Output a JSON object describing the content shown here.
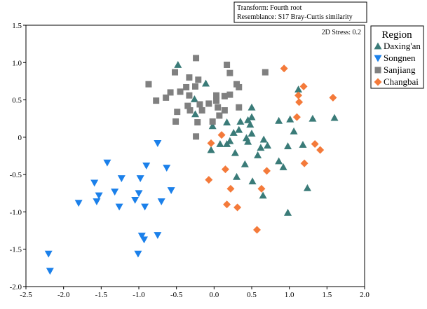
{
  "chart_data": {
    "type": "scatter",
    "title": "",
    "xlabel": "",
    "ylabel": "",
    "xlim": [
      -2.5,
      2.0
    ],
    "ylim": [
      -2.0,
      1.5
    ],
    "xticks": [
      "-2.5",
      "-2.0",
      "-1.5",
      "-1.0",
      "-0.5",
      "0.0",
      "0.5",
      "1.0",
      "1.5",
      "2.0"
    ],
    "yticks": [
      "1.5",
      "1.0",
      "0.5",
      "0",
      "-0.5",
      "-1.0",
      "-1.5",
      "-2.0"
    ],
    "grid": false,
    "legend_placement": "right-top",
    "legend_title": "Region",
    "annotation_box": [
      "Transform: Fourth root",
      "Resemblance: S17 Bray-Curtis similarity"
    ],
    "stress_label": "2D Stress: 0.2",
    "series": [
      {
        "name": "Daxing'an",
        "marker": "triangle-up",
        "color": "#3a7b78",
        "points": [
          [
            -0.11,
            0.72
          ],
          [
            1.12,
            0.64
          ],
          [
            0.5,
            0.4
          ],
          [
            0.5,
            0.27
          ],
          [
            0.17,
            0.2
          ],
          [
            0.35,
            0.21
          ],
          [
            0.45,
            0.23
          ],
          [
            0.48,
            0.17
          ],
          [
            0.86,
            0.22
          ],
          [
            1.01,
            0.24
          ],
          [
            1.31,
            0.25
          ],
          [
            1.6,
            0.26
          ],
          [
            0.33,
            0.1
          ],
          [
            0.26,
            0.06
          ],
          [
            -0.02,
            0.15
          ],
          [
            1.06,
            0.08
          ],
          [
            0.5,
            0.05
          ],
          [
            0.43,
            -0.01
          ],
          [
            0.45,
            -0.06
          ],
          [
            0.21,
            -0.05
          ],
          [
            0.08,
            -0.09
          ],
          [
            0.17,
            -0.09
          ],
          [
            -0.04,
            -0.17
          ],
          [
            0.66,
            -0.03
          ],
          [
            0.71,
            -0.11
          ],
          [
            0.62,
            -0.14
          ],
          [
            0.28,
            -0.21
          ],
          [
            0.58,
            -0.24
          ],
          [
            0.98,
            -0.12
          ],
          [
            1.18,
            -0.1
          ],
          [
            0.41,
            -0.36
          ],
          [
            0.86,
            -0.32
          ],
          [
            0.92,
            -0.4
          ],
          [
            0.3,
            -0.53
          ],
          [
            0.51,
            -0.59
          ],
          [
            0.65,
            -0.78
          ],
          [
            1.24,
            -0.68
          ],
          [
            0.98,
            -1.01
          ],
          [
            -0.48,
            0.97
          ],
          [
            -0.26,
            0.51
          ],
          [
            -0.25,
            0.31
          ]
        ]
      },
      {
        "name": "Songnen",
        "marker": "triangle-down",
        "color": "#1b80ea",
        "points": [
          [
            -0.75,
            -0.08
          ],
          [
            -1.42,
            -0.34
          ],
          [
            -0.9,
            -0.38
          ],
          [
            -0.63,
            -0.41
          ],
          [
            -1.23,
            -0.55
          ],
          [
            -0.98,
            -0.55
          ],
          [
            -1.59,
            -0.61
          ],
          [
            -0.57,
            -0.71
          ],
          [
            -1.32,
            -0.73
          ],
          [
            -1.0,
            -0.75
          ],
          [
            -1.53,
            -0.78
          ],
          [
            -1.56,
            -0.86
          ],
          [
            -1.05,
            -0.84
          ],
          [
            -1.8,
            -0.88
          ],
          [
            -0.7,
            -0.86
          ],
          [
            -1.26,
            -0.93
          ],
          [
            -0.92,
            -0.93
          ],
          [
            -0.96,
            -1.32
          ],
          [
            -0.93,
            -1.37
          ],
          [
            -0.75,
            -1.31
          ],
          [
            -1.01,
            -1.56
          ],
          [
            -2.2,
            -1.56
          ],
          [
            -2.18,
            -1.79
          ]
        ]
      },
      {
        "name": "Sanjiang",
        "marker": "square",
        "color": "#808080",
        "points": [
          [
            -0.24,
            1.06
          ],
          [
            0.17,
            0.97
          ],
          [
            -0.52,
            0.87
          ],
          [
            0.21,
            0.86
          ],
          [
            0.68,
            0.87
          ],
          [
            -0.33,
            0.8
          ],
          [
            -0.21,
            0.77
          ],
          [
            -0.87,
            0.71
          ],
          [
            0.3,
            0.71
          ],
          [
            0.33,
            0.67
          ],
          [
            -0.37,
            0.67
          ],
          [
            -0.25,
            0.68
          ],
          [
            -0.58,
            0.6
          ],
          [
            -0.45,
            0.61
          ],
          [
            -0.64,
            0.53
          ],
          [
            -0.77,
            0.49
          ],
          [
            -0.33,
            0.56
          ],
          [
            0.03,
            0.56
          ],
          [
            0.14,
            0.55
          ],
          [
            0.21,
            0.57
          ],
          [
            0.03,
            0.49
          ],
          [
            -0.35,
            0.42
          ],
          [
            -0.19,
            0.44
          ],
          [
            -0.07,
            0.45
          ],
          [
            0.05,
            0.4
          ],
          [
            0.14,
            0.36
          ],
          [
            -0.32,
            0.36
          ],
          [
            -0.16,
            0.36
          ],
          [
            0.33,
            0.4
          ],
          [
            0.07,
            0.29
          ],
          [
            -0.49,
            0.34
          ],
          [
            -0.51,
            0.21
          ],
          [
            -0.22,
            0.2
          ],
          [
            -0.02,
            0.21
          ],
          [
            -0.24,
            0.01
          ]
        ]
      },
      {
        "name": "Changbai",
        "marker": "diamond",
        "color": "#f47a3a",
        "points": [
          [
            0.93,
            0.92
          ],
          [
            1.19,
            0.68
          ],
          [
            1.12,
            0.56
          ],
          [
            1.13,
            0.47
          ],
          [
            1.58,
            0.53
          ],
          [
            1.1,
            0.27
          ],
          [
            0.1,
            0.03
          ],
          [
            -0.04,
            -0.08
          ],
          [
            1.34,
            -0.09
          ],
          [
            1.41,
            -0.17
          ],
          [
            1.2,
            -0.35
          ],
          [
            0.15,
            -0.43
          ],
          [
            0.7,
            -0.45
          ],
          [
            -0.07,
            -0.57
          ],
          [
            0.22,
            -0.69
          ],
          [
            0.63,
            -0.69
          ],
          [
            0.17,
            -0.9
          ],
          [
            0.31,
            -0.94
          ],
          [
            0.57,
            -1.24
          ]
        ]
      }
    ]
  }
}
